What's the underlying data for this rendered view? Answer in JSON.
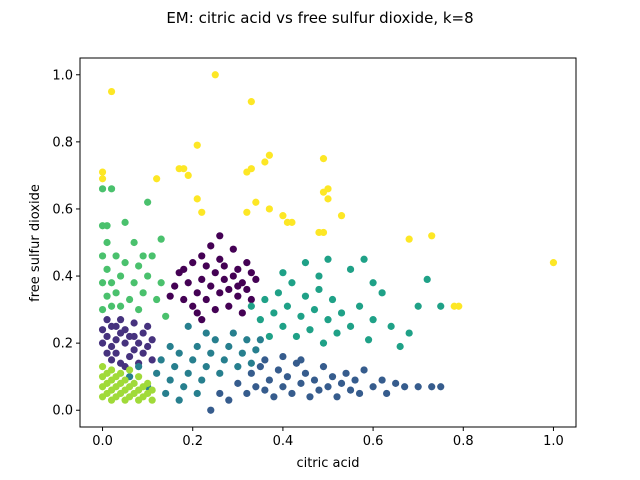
{
  "chart_data": {
    "type": "scatter",
    "title": "EM: citric acid vs free sulfur dioxide, k=8",
    "xlabel": "citric acid",
    "ylabel": "free sulfur dioxide",
    "xlim": [
      -0.05,
      1.05
    ],
    "ylim": [
      -0.05,
      1.05
    ],
    "xticks": [
      "0.0",
      "0.2",
      "0.4",
      "0.6",
      "0.8",
      "1.0"
    ],
    "yticks": [
      "0.0",
      "0.2",
      "0.4",
      "0.6",
      "0.8",
      "1.0"
    ],
    "grid": false,
    "colormap": "viridis",
    "clusters": [
      {
        "color": "#440154",
        "points": [
          [
            0.15,
            0.34
          ],
          [
            0.16,
            0.37
          ],
          [
            0.17,
            0.41
          ],
          [
            0.18,
            0.33
          ],
          [
            0.19,
            0.38
          ],
          [
            0.2,
            0.44
          ],
          [
            0.21,
            0.35
          ],
          [
            0.21,
            0.29
          ],
          [
            0.22,
            0.39
          ],
          [
            0.22,
            0.46
          ],
          [
            0.23,
            0.43
          ],
          [
            0.23,
            0.33
          ],
          [
            0.24,
            0.37
          ],
          [
            0.24,
            0.49
          ],
          [
            0.25,
            0.41
          ],
          [
            0.25,
            0.3
          ],
          [
            0.26,
            0.35
          ],
          [
            0.26,
            0.45
          ],
          [
            0.27,
            0.39
          ],
          [
            0.27,
            0.43
          ],
          [
            0.28,
            0.31
          ],
          [
            0.28,
            0.36
          ],
          [
            0.29,
            0.4
          ],
          [
            0.29,
            0.48
          ],
          [
            0.3,
            0.34
          ],
          [
            0.3,
            0.42
          ],
          [
            0.31,
            0.38
          ],
          [
            0.31,
            0.29
          ],
          [
            0.32,
            0.44
          ],
          [
            0.32,
            0.36
          ],
          [
            0.33,
            0.41
          ],
          [
            0.33,
            0.33
          ],
          [
            0.34,
            0.39
          ],
          [
            0.2,
            0.31
          ],
          [
            0.18,
            0.42
          ],
          [
            0.26,
            0.52
          ],
          [
            0.22,
            0.27
          ],
          [
            0.3,
            0.37
          ]
        ]
      },
      {
        "color": "#46327e",
        "points": [
          [
            0.0,
            0.2
          ],
          [
            0.0,
            0.24
          ],
          [
            0.01,
            0.17
          ],
          [
            0.01,
            0.22
          ],
          [
            0.01,
            0.27
          ],
          [
            0.02,
            0.15
          ],
          [
            0.02,
            0.19
          ],
          [
            0.02,
            0.25
          ],
          [
            0.03,
            0.21
          ],
          [
            0.03,
            0.17
          ],
          [
            0.04,
            0.23
          ],
          [
            0.04,
            0.14
          ],
          [
            0.04,
            0.27
          ],
          [
            0.05,
            0.2
          ],
          [
            0.05,
            0.24
          ],
          [
            0.06,
            0.16
          ],
          [
            0.06,
            0.22
          ],
          [
            0.07,
            0.18
          ],
          [
            0.07,
            0.26
          ],
          [
            0.08,
            0.2
          ],
          [
            0.08,
            0.14
          ],
          [
            0.09,
            0.23
          ],
          [
            0.09,
            0.17
          ],
          [
            0.1,
            0.25
          ],
          [
            0.1,
            0.19
          ],
          [
            0.11,
            0.21
          ],
          [
            0.11,
            0.15
          ],
          [
            0.03,
            0.25
          ],
          [
            0.05,
            0.13
          ],
          [
            0.07,
            0.22
          ]
        ]
      },
      {
        "color": "#365c8d",
        "points": [
          [
            0.3,
            0.08
          ],
          [
            0.32,
            0.05
          ],
          [
            0.33,
            0.11
          ],
          [
            0.34,
            0.07
          ],
          [
            0.35,
            0.13
          ],
          [
            0.36,
            0.06
          ],
          [
            0.37,
            0.09
          ],
          [
            0.38,
            0.04
          ],
          [
            0.39,
            0.12
          ],
          [
            0.4,
            0.07
          ],
          [
            0.41,
            0.1
          ],
          [
            0.42,
            0.05
          ],
          [
            0.43,
            0.14
          ],
          [
            0.44,
            0.08
          ],
          [
            0.45,
            0.11
          ],
          [
            0.46,
            0.04
          ],
          [
            0.47,
            0.09
          ],
          [
            0.48,
            0.06
          ],
          [
            0.49,
            0.13
          ],
          [
            0.5,
            0.07
          ],
          [
            0.51,
            0.1
          ],
          [
            0.52,
            0.04
          ],
          [
            0.53,
            0.08
          ],
          [
            0.54,
            0.11
          ],
          [
            0.55,
            0.06
          ],
          [
            0.56,
            0.09
          ],
          [
            0.57,
            0.05
          ],
          [
            0.58,
            0.12
          ],
          [
            0.6,
            0.07
          ],
          [
            0.62,
            0.09
          ],
          [
            0.63,
            0.05
          ],
          [
            0.65,
            0.08
          ],
          [
            0.67,
            0.07
          ],
          [
            0.7,
            0.07
          ],
          [
            0.73,
            0.07
          ],
          [
            0.75,
            0.07
          ],
          [
            0.26,
            0.05
          ],
          [
            0.24,
            0.0
          ],
          [
            0.28,
            0.03
          ],
          [
            0.44,
            0.15
          ],
          [
            0.4,
            0.16
          ],
          [
            0.36,
            0.15
          ]
        ]
      },
      {
        "color": "#277f8e",
        "points": [
          [
            0.06,
            0.1
          ],
          [
            0.08,
            0.13
          ],
          [
            0.1,
            0.07
          ],
          [
            0.12,
            0.11
          ],
          [
            0.13,
            0.15
          ],
          [
            0.14,
            0.05
          ],
          [
            0.15,
            0.09
          ],
          [
            0.16,
            0.13
          ],
          [
            0.17,
            0.17
          ],
          [
            0.18,
            0.07
          ],
          [
            0.19,
            0.11
          ],
          [
            0.2,
            0.15
          ],
          [
            0.21,
            0.19
          ],
          [
            0.22,
            0.09
          ],
          [
            0.23,
            0.13
          ],
          [
            0.24,
            0.17
          ],
          [
            0.25,
            0.21
          ],
          [
            0.26,
            0.11
          ],
          [
            0.27,
            0.15
          ],
          [
            0.28,
            0.19
          ],
          [
            0.29,
            0.23
          ],
          [
            0.3,
            0.13
          ],
          [
            0.31,
            0.17
          ],
          [
            0.32,
            0.21
          ],
          [
            0.33,
            0.14
          ],
          [
            0.34,
            0.18
          ],
          [
            0.19,
            0.25
          ],
          [
            0.23,
            0.23
          ],
          [
            0.17,
            0.03
          ],
          [
            0.21,
            0.05
          ],
          [
            0.35,
            0.21
          ],
          [
            0.15,
            0.19
          ]
        ]
      },
      {
        "color": "#1fa187",
        "points": [
          [
            0.33,
            0.31
          ],
          [
            0.35,
            0.27
          ],
          [
            0.36,
            0.33
          ],
          [
            0.37,
            0.22
          ],
          [
            0.38,
            0.29
          ],
          [
            0.39,
            0.35
          ],
          [
            0.4,
            0.25
          ],
          [
            0.41,
            0.31
          ],
          [
            0.42,
            0.38
          ],
          [
            0.43,
            0.22
          ],
          [
            0.44,
            0.28
          ],
          [
            0.45,
            0.34
          ],
          [
            0.46,
            0.24
          ],
          [
            0.47,
            0.3
          ],
          [
            0.48,
            0.36
          ],
          [
            0.49,
            0.2
          ],
          [
            0.5,
            0.27
          ],
          [
            0.51,
            0.33
          ],
          [
            0.52,
            0.23
          ],
          [
            0.53,
            0.29
          ],
          [
            0.55,
            0.25
          ],
          [
            0.57,
            0.31
          ],
          [
            0.59,
            0.21
          ],
          [
            0.6,
            0.27
          ],
          [
            0.62,
            0.35
          ],
          [
            0.64,
            0.25
          ],
          [
            0.66,
            0.19
          ],
          [
            0.68,
            0.23
          ],
          [
            0.7,
            0.31
          ],
          [
            0.72,
            0.39
          ],
          [
            0.75,
            0.31
          ],
          [
            0.4,
            0.41
          ],
          [
            0.45,
            0.44
          ],
          [
            0.48,
            0.4
          ],
          [
            0.5,
            0.45
          ],
          [
            0.55,
            0.42
          ],
          [
            0.6,
            0.38
          ],
          [
            0.58,
            0.45
          ]
        ]
      },
      {
        "color": "#4ac16d",
        "points": [
          [
            0.0,
            0.3
          ],
          [
            0.0,
            0.38
          ],
          [
            0.0,
            0.46
          ],
          [
            0.0,
            0.55
          ],
          [
            0.0,
            0.66
          ],
          [
            0.01,
            0.34
          ],
          [
            0.01,
            0.42
          ],
          [
            0.01,
            0.5
          ],
          [
            0.02,
            0.31
          ],
          [
            0.02,
            0.38
          ],
          [
            0.02,
            0.66
          ],
          [
            0.03,
            0.35
          ],
          [
            0.03,
            0.46
          ],
          [
            0.04,
            0.31
          ],
          [
            0.04,
            0.4
          ],
          [
            0.05,
            0.56
          ],
          [
            0.05,
            0.44
          ],
          [
            0.06,
            0.33
          ],
          [
            0.07,
            0.38
          ],
          [
            0.07,
            0.5
          ],
          [
            0.08,
            0.3
          ],
          [
            0.08,
            0.43
          ],
          [
            0.09,
            0.35
          ],
          [
            0.09,
            0.46
          ],
          [
            0.1,
            0.4
          ],
          [
            0.1,
            0.62
          ],
          [
            0.11,
            0.46
          ],
          [
            0.12,
            0.33
          ],
          [
            0.13,
            0.38
          ],
          [
            0.13,
            0.51
          ],
          [
            0.14,
            0.28
          ],
          [
            0.01,
            0.55
          ]
        ]
      },
      {
        "color": "#a0da39",
        "points": [
          [
            0.0,
            0.04
          ],
          [
            0.0,
            0.07
          ],
          [
            0.0,
            0.1
          ],
          [
            0.0,
            0.13
          ],
          [
            0.01,
            0.05
          ],
          [
            0.01,
            0.08
          ],
          [
            0.01,
            0.11
          ],
          [
            0.02,
            0.03
          ],
          [
            0.02,
            0.06
          ],
          [
            0.02,
            0.09
          ],
          [
            0.02,
            0.12
          ],
          [
            0.03,
            0.04
          ],
          [
            0.03,
            0.07
          ],
          [
            0.03,
            0.1
          ],
          [
            0.04,
            0.05
          ],
          [
            0.04,
            0.08
          ],
          [
            0.04,
            0.11
          ],
          [
            0.05,
            0.03
          ],
          [
            0.05,
            0.06
          ],
          [
            0.05,
            0.09
          ],
          [
            0.06,
            0.04
          ],
          [
            0.06,
            0.07
          ],
          [
            0.06,
            0.12
          ],
          [
            0.07,
            0.05
          ],
          [
            0.07,
            0.08
          ],
          [
            0.08,
            0.03
          ],
          [
            0.08,
            0.06
          ],
          [
            0.08,
            0.1
          ],
          [
            0.09,
            0.04
          ],
          [
            0.09,
            0.07
          ],
          [
            0.1,
            0.05
          ],
          [
            0.1,
            0.08
          ],
          [
            0.11,
            0.03
          ],
          [
            0.11,
            0.06
          ]
        ]
      },
      {
        "color": "#fde725",
        "points": [
          [
            0.0,
            0.69
          ],
          [
            0.0,
            0.71
          ],
          [
            0.02,
            0.95
          ],
          [
            0.12,
            0.69
          ],
          [
            0.17,
            0.72
          ],
          [
            0.18,
            0.72
          ],
          [
            0.19,
            0.7
          ],
          [
            0.21,
            0.79
          ],
          [
            0.21,
            0.63
          ],
          [
            0.22,
            0.59
          ],
          [
            0.25,
            1.0
          ],
          [
            0.32,
            0.71
          ],
          [
            0.32,
            0.59
          ],
          [
            0.33,
            0.72
          ],
          [
            0.33,
            0.92
          ],
          [
            0.34,
            0.62
          ],
          [
            0.36,
            0.74
          ],
          [
            0.37,
            0.76
          ],
          [
            0.37,
            0.6
          ],
          [
            0.4,
            0.58
          ],
          [
            0.41,
            0.56
          ],
          [
            0.42,
            0.56
          ],
          [
            0.48,
            0.53
          ],
          [
            0.49,
            0.75
          ],
          [
            0.49,
            0.65
          ],
          [
            0.5,
            0.66
          ],
          [
            0.5,
            0.63
          ],
          [
            0.53,
            0.58
          ],
          [
            0.68,
            0.51
          ],
          [
            0.73,
            0.52
          ],
          [
            0.78,
            0.31
          ],
          [
            0.79,
            0.31
          ],
          [
            1.0,
            0.44
          ],
          [
            0.49,
            0.53
          ]
        ]
      }
    ]
  }
}
